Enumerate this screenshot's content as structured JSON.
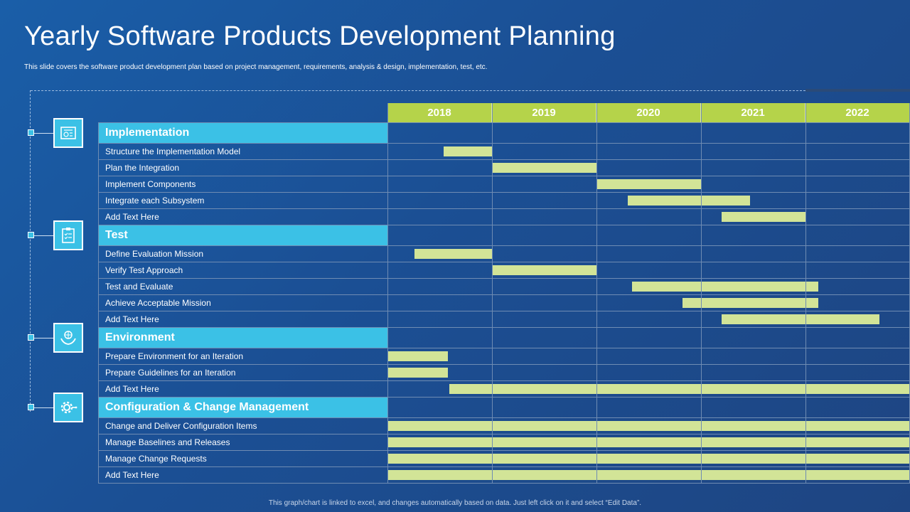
{
  "title": "Yearly Software Products Development Planning",
  "subtitle": "This slide covers the software product development plan based on project management,  requirements, analysis & design, implementation,  test, etc.",
  "footer": "This graph/chart is linked to excel, and changes automatically based on data. Just left click on it and select “Edit Data”.",
  "colors": {
    "section_bg": "#3bc1e6",
    "year_header_bg": "#b5d34a",
    "bar": "#d2e497",
    "background": "#1b4f94"
  },
  "icons": [
    "blueprint-icon",
    "clipboard-checklist-icon",
    "hands-globe-icon",
    "gear-settings-icon"
  ],
  "chart_data": {
    "type": "gantt",
    "years": [
      "2018",
      "2019",
      "2020",
      "2021",
      "2022"
    ],
    "x_range": [
      2018,
      2023
    ],
    "sections": [
      {
        "name": "Implementation",
        "icon": "blueprint-icon",
        "tasks": [
          {
            "label": "Structure the Implementation Model",
            "start": 2018.54,
            "end": 2019.0
          },
          {
            "label": "Plan the Integration",
            "start": 2019.0,
            "end": 2020.0
          },
          {
            "label": "Implement Components",
            "start": 2020.0,
            "end": 2021.01
          },
          {
            "label": "Integrate each Subsystem",
            "start": 2020.3,
            "end": 2021.47
          },
          {
            "label": "Add Text Here",
            "start": 2021.2,
            "end": 2022.0
          }
        ]
      },
      {
        "name": "Test",
        "icon": "clipboard-checklist-icon",
        "tasks": [
          {
            "label": "Define Evaluation Mission",
            "start": 2018.26,
            "end": 2019.0
          },
          {
            "label": "Verify Test Approach",
            "start": 2019.0,
            "end": 2020.0
          },
          {
            "label": "Test and Evaluate",
            "start": 2020.34,
            "end": 2022.12
          },
          {
            "label": "Achieve Acceptable Mission",
            "start": 2020.82,
            "end": 2022.12
          },
          {
            "label": "Add Text Here",
            "start": 2021.2,
            "end": 2022.71
          }
        ]
      },
      {
        "name": "Environment",
        "icon": "hands-globe-icon",
        "tasks": [
          {
            "label": "Prepare Environment for an Iteration",
            "start": 2018.0,
            "end": 2018.58
          },
          {
            "label": "Prepare Guidelines for an Iteration",
            "start": 2018.0,
            "end": 2018.58
          },
          {
            "label": "Add Text Here",
            "start": 2018.59,
            "end": 2023.0
          }
        ]
      },
      {
        "name": "Configuration & Change Management",
        "icon": "gear-settings-icon",
        "tasks": [
          {
            "label": "Change and Deliver Configuration Items",
            "start": 2018.0,
            "end": 2023.0
          },
          {
            "label": "Manage Baselines and Releases",
            "start": 2018.0,
            "end": 2023.0
          },
          {
            "label": "Manage Change Requests",
            "start": 2018.0,
            "end": 2023.0
          },
          {
            "label": "Add Text Here",
            "start": 2018.0,
            "end": 2023.0
          }
        ]
      }
    ]
  }
}
